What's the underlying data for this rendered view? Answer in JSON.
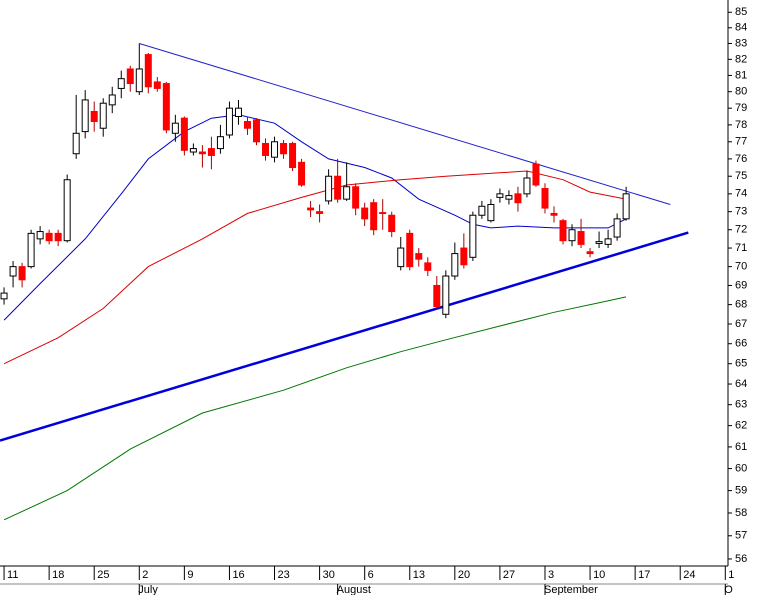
{
  "chart_data": {
    "type": "candlestick",
    "open": [
      68.3,
      69.5,
      70.0,
      70.0,
      71.5,
      71.8,
      71.8,
      71.4,
      76.3,
      77.6,
      78.8,
      77.8,
      79.2,
      80.2,
      81.4,
      80.0,
      82.3,
      80.6,
      80.5,
      77.5,
      78.4,
      76.4,
      76.4,
      76.6,
      76.6,
      77.4,
      78.5,
      78.2,
      78.3,
      76.9,
      76.1,
      76.9,
      76.9,
      75.8,
      73.2,
      73.0,
      73.6,
      75.0,
      73.7,
      74.4,
      73.2,
      73.5,
      72.95,
      72.8,
      70.0,
      71.8,
      70.7,
      70.2,
      69.0,
      67.5,
      69.5,
      71.0,
      70.5,
      72.8,
      72.5,
      73.8,
      73.7,
      74.0,
      74.0,
      75.7,
      74.3,
      72.9,
      72.5,
      71.4,
      71.9,
      70.8,
      71.25,
      71.2,
      71.6,
      72.6
    ],
    "high": [
      68.9,
      70.3,
      70.2,
      72.0,
      72.2,
      72.0,
      72.0,
      75.1,
      79.8,
      80.1,
      79.4,
      79.6,
      80.3,
      81.3,
      81.6,
      83.0,
      82.4,
      80.9,
      80.6,
      78.6,
      78.5,
      76.9,
      76.8,
      77.3,
      78.0,
      79.4,
      79.5,
      78.5,
      78.4,
      77.2,
      77.3,
      77.1,
      77.0,
      76.0,
      73.6,
      73.4,
      75.4,
      76.0,
      75.8,
      74.6,
      73.5,
      73.7,
      73.7,
      73.0,
      71.6,
      72.0,
      71.0,
      70.5,
      69.5,
      69.8,
      71.3,
      71.8,
      73.0,
      73.6,
      73.7,
      74.3,
      74.2,
      74.4,
      75.3,
      75.9,
      74.6,
      73.3,
      72.6,
      72.3,
      72.6,
      71.0,
      71.9,
      72.0,
      72.9,
      74.4
    ],
    "low": [
      68.0,
      68.9,
      68.9,
      69.9,
      71.2,
      71.2,
      71.1,
      71.3,
      76.0,
      77.2,
      77.6,
      77.3,
      78.7,
      79.6,
      80.0,
      79.8,
      79.9,
      80.0,
      77.5,
      77.0,
      76.2,
      76.2,
      75.5,
      75.4,
      76.3,
      77.2,
      78.0,
      77.4,
      76.8,
      75.9,
      75.8,
      76.0,
      75.3,
      74.4,
      72.7,
      72.4,
      73.4,
      73.5,
      73.6,
      72.8,
      72.2,
      71.7,
      72.0,
      71.6,
      69.8,
      69.8,
      70.0,
      69.5,
      67.8,
      67.3,
      69.3,
      69.9,
      70.3,
      72.6,
      72.4,
      73.5,
      73.4,
      73.0,
      73.8,
      74.4,
      72.9,
      72.4,
      71.2,
      71.1,
      71.0,
      70.5,
      71.0,
      71.0,
      71.4,
      72.5
    ],
    "close": [
      68.6,
      70.0,
      69.3,
      71.8,
      71.9,
      71.4,
      71.4,
      74.8,
      77.5,
      79.5,
      78.2,
      79.3,
      79.8,
      80.8,
      80.5,
      81.4,
      80.3,
      80.2,
      77.7,
      78.1,
      76.5,
      76.6,
      76.3,
      76.2,
      77.3,
      79.0,
      79.0,
      77.8,
      77.0,
      76.2,
      77.0,
      76.3,
      75.5,
      74.5,
      73.1,
      72.9,
      75.0,
      73.7,
      74.4,
      73.2,
      72.6,
      72.0,
      72.9,
      71.9,
      71.0,
      70.0,
      70.4,
      69.8,
      67.9,
      69.5,
      70.7,
      70.1,
      72.8,
      73.3,
      73.4,
      74.0,
      73.9,
      73.5,
      74.9,
      74.5,
      73.2,
      72.8,
      71.4,
      72.0,
      71.2,
      70.7,
      71.35,
      71.5,
      72.6,
      74.0
    ],
    "up_color": "#ffffff",
    "down_color": "#ff0000",
    "lines": [
      {
        "color": "#0000cc",
        "x": [
          0,
          4,
          9,
          13,
          16,
          20,
          23,
          26,
          30,
          33,
          36,
          40,
          43,
          46,
          50,
          52,
          54,
          57,
          61,
          64,
          67,
          69
        ],
        "values": [
          67.2,
          69.1,
          71.5,
          74.0,
          76.0,
          77.6,
          78.4,
          78.6,
          78.1,
          77.0,
          76.0,
          75.5,
          74.9,
          73.7,
          72.8,
          72.3,
          72.1,
          72.2,
          72.1,
          72.1,
          72.1,
          72.6
        ]
      },
      {
        "color": "#dd0000",
        "x": [
          0,
          6,
          11,
          16,
          22,
          27,
          33,
          38,
          44,
          49,
          55,
          58,
          62,
          65,
          68,
          69
        ],
        "values": [
          65.0,
          66.3,
          67.8,
          70.0,
          71.5,
          72.9,
          73.8,
          74.5,
          74.8,
          75.0,
          75.2,
          75.3,
          74.8,
          74.1,
          73.8,
          73.7
        ]
      },
      {
        "color": "#007700",
        "x": [
          0,
          7,
          14,
          22,
          31,
          38,
          44,
          49,
          55,
          61,
          66,
          69
        ],
        "values": [
          57.7,
          59.0,
          60.9,
          62.6,
          63.7,
          64.8,
          65.6,
          66.2,
          66.9,
          67.6,
          68.1,
          68.4
        ]
      }
    ],
    "trendlines": [
      {
        "color": "#2222cc",
        "width": 1,
        "x": [
          15,
          73.9
        ],
        "values": [
          83.0,
          73.4
        ]
      },
      {
        "color": "#0000dd",
        "width": 2.5,
        "x": [
          -0.45,
          75.9
        ],
        "values": [
          61.3,
          71.84
        ]
      }
    ],
    "log_y": true,
    "xlim": [
      -0.45,
      80.3
    ],
    "ylim": [
      55.7,
      85.8
    ],
    "xticks": [
      {
        "value": 0,
        "label": "11"
      },
      {
        "value": 5,
        "label": "18"
      },
      {
        "value": 10,
        "label": "25"
      },
      {
        "value": 15,
        "label": "2"
      },
      {
        "value": 20,
        "label": "9"
      },
      {
        "value": 25,
        "label": "16"
      },
      {
        "value": 30,
        "label": "23"
      },
      {
        "value": 35,
        "label": "30"
      },
      {
        "value": 40,
        "label": "6"
      },
      {
        "value": 45,
        "label": "13"
      },
      {
        "value": 50,
        "label": "20"
      },
      {
        "value": 55,
        "label": "27"
      },
      {
        "value": 60,
        "label": "3"
      },
      {
        "value": 65,
        "label": "10"
      },
      {
        "value": 70,
        "label": "17"
      },
      {
        "value": 75,
        "label": "24"
      },
      {
        "value": 80,
        "label": "1"
      }
    ],
    "months": [
      {
        "value": 15,
        "label": "July"
      },
      {
        "value": 37,
        "label": "August"
      },
      {
        "value": 60,
        "label": "September"
      },
      {
        "value": 80,
        "label": "O"
      }
    ],
    "yticks": [
      56,
      57,
      58,
      59,
      60,
      61,
      62,
      63,
      64,
      65,
      66,
      67,
      68,
      69,
      70,
      71,
      72,
      73,
      74,
      75,
      76,
      77,
      78,
      79,
      80,
      81,
      82,
      83,
      84,
      85
    ]
  }
}
